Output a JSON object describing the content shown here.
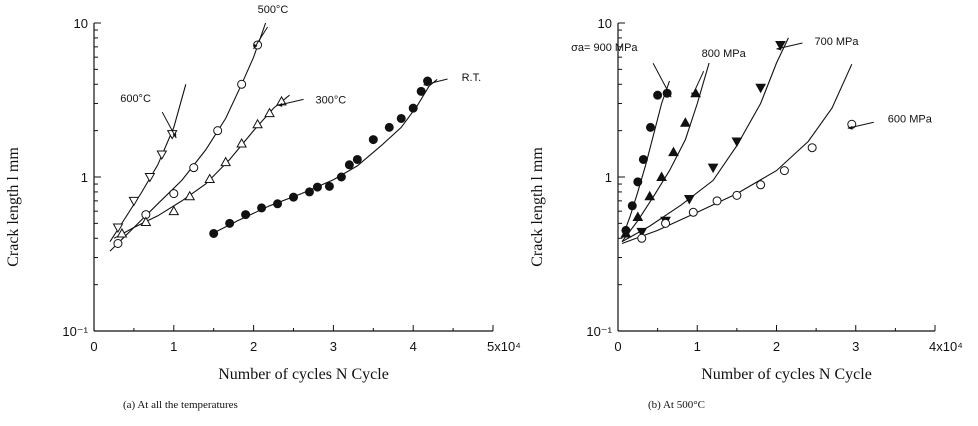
{
  "chart_data": [
    {
      "type": "scatter",
      "caption": "(a)   At all the temperatures",
      "xlabel": "Number of cycles  N  Cycle",
      "ylabel": "Crack length  l   mm",
      "log_y": true,
      "xlim": [
        0,
        50000
      ],
      "ylim": [
        0.1,
        10
      ],
      "x_tick_values": [
        0,
        10000,
        20000,
        30000,
        40000,
        50000
      ],
      "x_tick_labels": [
        "0",
        "1",
        "2",
        "3",
        "4",
        "5x10⁴"
      ],
      "y_tick_values": [
        0.1,
        1,
        10
      ],
      "y_tick_labels": [
        "10⁻¹",
        "1",
        "10"
      ],
      "series": [
        {
          "name": "600°C",
          "marker": "triangle-down",
          "fill": false,
          "label_pos": "left",
          "x": [
            3000,
            5000,
            7000,
            8500,
            9800
          ],
          "y": [
            0.47,
            0.7,
            1.0,
            1.4,
            1.9
          ],
          "curve_x": [
            2000,
            4000,
            6000,
            8000,
            10000,
            11500
          ],
          "curve_y": [
            0.38,
            0.55,
            0.8,
            1.2,
            2.1,
            4.0
          ]
        },
        {
          "name": "500°C",
          "marker": "circle",
          "fill": false,
          "label_pos": "above",
          "x": [
            3000,
            6500,
            10000,
            12500,
            15500,
            18500,
            20500
          ],
          "y": [
            0.37,
            0.57,
            0.78,
            1.15,
            2.0,
            4.0,
            7.2
          ],
          "curve_x": [
            2000,
            5000,
            8000,
            11000,
            14000,
            16500,
            18500,
            20000,
            21500
          ],
          "curve_y": [
            0.33,
            0.47,
            0.67,
            0.95,
            1.5,
            2.4,
            4.0,
            6.0,
            10.0
          ]
        },
        {
          "name": "300°C",
          "marker": "triangle-up",
          "fill": false,
          "label_pos": "right",
          "x": [
            3500,
            6500,
            10000,
            12000,
            14500,
            16500,
            18500,
            20500,
            22000,
            23500
          ],
          "y": [
            0.43,
            0.51,
            0.6,
            0.75,
            0.97,
            1.25,
            1.65,
            2.2,
            2.6,
            3.1
          ],
          "curve_x": [
            2500,
            5000,
            8000,
            11000,
            14000,
            17000,
            20000,
            22500,
            24500
          ],
          "curve_y": [
            0.4,
            0.47,
            0.56,
            0.7,
            0.9,
            1.3,
            2.0,
            2.8,
            3.4
          ]
        },
        {
          "name": "R.T.",
          "marker": "circle",
          "fill": true,
          "label_pos": "right",
          "x": [
            15000,
            17000,
            19000,
            21000,
            23000,
            25000,
            27000,
            28000,
            29500,
            31000,
            32000,
            33000,
            35000,
            37000,
            38500,
            40000,
            41000,
            41800
          ],
          "y": [
            0.43,
            0.5,
            0.57,
            0.63,
            0.67,
            0.74,
            0.8,
            0.86,
            0.87,
            1.0,
            1.2,
            1.3,
            1.75,
            2.1,
            2.4,
            2.8,
            3.6,
            4.2
          ],
          "curve_x": [
            14500,
            18000,
            22000,
            26000,
            30000,
            33000,
            36000,
            38500,
            40500,
            42000,
            43000
          ],
          "curve_y": [
            0.42,
            0.52,
            0.65,
            0.78,
            0.96,
            1.18,
            1.6,
            2.1,
            2.9,
            3.9,
            4.3
          ]
        }
      ]
    },
    {
      "type": "scatter",
      "caption": "(b)   At 500°C",
      "xlabel": "Number of cycles  N  Cycle",
      "ylabel": "Crack length  l   mm",
      "log_y": true,
      "xlim": [
        0,
        40000
      ],
      "ylim": [
        0.1,
        10
      ],
      "x_tick_values": [
        0,
        10000,
        20000,
        30000,
        40000
      ],
      "x_tick_labels": [
        "0",
        "1",
        "2",
        "3",
        "4x10⁴"
      ],
      "y_tick_values": [
        0.1,
        1,
        10
      ],
      "y_tick_labels": [
        "10⁻¹",
        "1",
        "10"
      ],
      "series": [
        {
          "name": "σa= 900 MPa",
          "marker": "circle",
          "fill": true,
          "label_pos": "above-left",
          "x": [
            1000,
            1800,
            2500,
            3200,
            4100,
            5000,
            6200
          ],
          "y": [
            0.45,
            0.65,
            0.93,
            1.3,
            2.1,
            3.4,
            3.5
          ],
          "curve_x": [
            500,
            1500,
            2500,
            3500,
            4500,
            5500,
            6500
          ],
          "curve_y": [
            0.4,
            0.55,
            0.8,
            1.2,
            1.9,
            3.0,
            4.2
          ]
        },
        {
          "name": "800 MPa",
          "marker": "triangle-up",
          "fill": true,
          "label_pos": "above",
          "x": [
            1000,
            2500,
            4000,
            5500,
            7000,
            8500,
            9800
          ],
          "y": [
            0.43,
            0.55,
            0.75,
            1.0,
            1.45,
            2.25,
            3.5
          ],
          "curve_x": [
            500,
            2500,
            4500,
            6500,
            8500,
            10000,
            11500
          ],
          "curve_y": [
            0.38,
            0.52,
            0.75,
            1.1,
            1.75,
            3.0,
            5.5
          ]
        },
        {
          "name": "700 MPa",
          "marker": "triangle-down",
          "fill": true,
          "label_pos": "right",
          "x": [
            3000,
            6000,
            9000,
            12000,
            15000,
            18000,
            20500
          ],
          "y": [
            0.44,
            0.52,
            0.72,
            1.15,
            1.7,
            3.8,
            7.2
          ],
          "curve_x": [
            500,
            4000,
            8000,
            12000,
            15000,
            18000,
            20000,
            21500
          ],
          "curve_y": [
            0.38,
            0.48,
            0.66,
            0.95,
            1.6,
            3.0,
            5.5,
            8.0
          ]
        },
        {
          "name": "600 MPa",
          "marker": "circle",
          "fill": false,
          "label_pos": "right",
          "x": [
            3000,
            6000,
            9500,
            12500,
            15000,
            18000,
            21000,
            24500,
            29500
          ],
          "y": [
            0.4,
            0.5,
            0.59,
            0.7,
            0.76,
            0.89,
            1.1,
            1.55,
            2.2
          ],
          "curve_x": [
            500,
            5000,
            10000,
            15000,
            20000,
            24000,
            27000,
            29500
          ],
          "curve_y": [
            0.37,
            0.45,
            0.59,
            0.78,
            1.1,
            1.7,
            2.8,
            5.4
          ]
        }
      ],
      "extra_points": [
        {
          "series": 3,
          "x": 29500,
          "y": 5.4
        }
      ]
    }
  ]
}
